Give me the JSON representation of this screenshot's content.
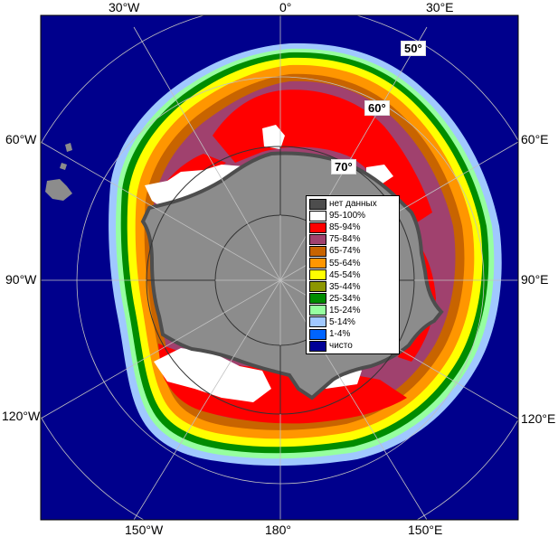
{
  "map": {
    "longitude_labels": [
      {
        "id": "30w",
        "text": "30°W"
      },
      {
        "id": "0",
        "text": "0°"
      },
      {
        "id": "30e",
        "text": "30°E"
      },
      {
        "id": "60w",
        "text": "60°W"
      },
      {
        "id": "60e",
        "text": "60°E"
      },
      {
        "id": "90w",
        "text": "90°W"
      },
      {
        "id": "90e",
        "text": "90°E"
      },
      {
        "id": "120w",
        "text": "120°W"
      },
      {
        "id": "120e",
        "text": "120°E"
      },
      {
        "id": "150w",
        "text": "150°W"
      },
      {
        "id": "180",
        "text": "180°"
      },
      {
        "id": "150e",
        "text": "150°E"
      }
    ],
    "latitude_labels": [
      {
        "id": "50",
        "text": "50°"
      },
      {
        "id": "60",
        "text": "60°"
      },
      {
        "id": "70",
        "text": "70°"
      }
    ]
  },
  "legend": {
    "items": [
      {
        "label": "нет данных",
        "color": "#4d4d4d"
      },
      {
        "label": "95-100%",
        "color": "#ffffff"
      },
      {
        "label": "85-94%",
        "color": "#ff0000"
      },
      {
        "label": "75-84%",
        "color": "#a0416e"
      },
      {
        "label": "65-74%",
        "color": "#c86400"
      },
      {
        "label": "55-64%",
        "color": "#ff9600"
      },
      {
        "label": "45-54%",
        "color": "#ffff00"
      },
      {
        "label": "35-44%",
        "color": "#8c9600"
      },
      {
        "label": "25-34%",
        "color": "#008c00"
      },
      {
        "label": "15-24%",
        "color": "#96ffa0"
      },
      {
        "label": "5-14%",
        "color": "#a0c8ff"
      },
      {
        "label": "1-4%",
        "color": "#0064ff"
      },
      {
        "label": "чисто",
        "color": "#000096"
      }
    ]
  },
  "colors": {
    "ocean": "#00008c",
    "land": "#8c8c8c",
    "no_data": "#4d4d4d"
  }
}
